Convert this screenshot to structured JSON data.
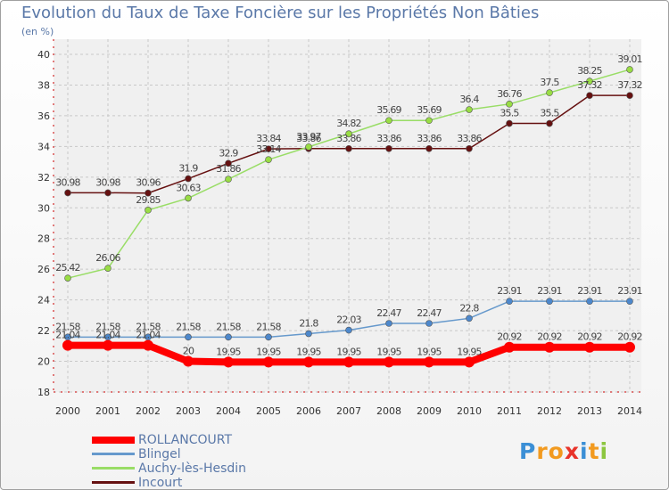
{
  "title": "Evolution du Taux de Taxe Foncière sur les Propriétés Non Bâties",
  "subtitle": "(en %)",
  "logo": "Proxiti",
  "chart_data": {
    "type": "line",
    "title": "Evolution du Taux de Taxe Foncière sur les Propriétés Non Bâties",
    "ylabel": "(en %)",
    "xlabel": "",
    "ylim": [
      18,
      40
    ],
    "yticks": [
      18,
      20,
      22,
      24,
      26,
      28,
      30,
      32,
      34,
      36,
      38,
      40
    ],
    "grid": true,
    "legend_position": "bottom-left",
    "categories": [
      "2000",
      "2001",
      "2002",
      "2003",
      "2004",
      "2005",
      "2006",
      "2007",
      "2008",
      "2009",
      "2010",
      "2011",
      "2012",
      "2013",
      "2014"
    ],
    "series": [
      {
        "name": "ROLLANCOURT",
        "color": "#ff0000",
        "values": [
          21.04,
          21.04,
          21.04,
          20,
          19.95,
          19.95,
          19.95,
          19.95,
          19.95,
          19.95,
          19.95,
          20.92,
          20.92,
          20.92,
          20.92
        ],
        "labels": [
          "21.04",
          "21.04",
          "21.04",
          "20",
          "19.95",
          "19.95",
          "19.95",
          "19.95",
          "19.95",
          "19.95",
          "19.95",
          "20.92",
          "20.92",
          "20.92",
          "20.92"
        ]
      },
      {
        "name": "Blingel",
        "color": "#6699cc",
        "values": [
          21.58,
          21.58,
          21.58,
          21.58,
          21.58,
          21.58,
          21.8,
          22.03,
          22.47,
          22.47,
          22.8,
          23.91,
          23.91,
          23.91,
          23.91
        ],
        "labels": [
          "21.58",
          "21.58",
          "21.58",
          "21.58",
          "21.58",
          "21.58",
          "21.8",
          "22.03",
          "22.47",
          "22.47",
          "22.8",
          "23.91",
          "23.91",
          "23.91",
          "23.91"
        ]
      },
      {
        "name": "Auchy-lès-Hesdin",
        "color": "#99dd66",
        "values": [
          25.42,
          26.06,
          29.85,
          30.63,
          31.86,
          33.14,
          33.97,
          34.82,
          35.69,
          35.69,
          36.4,
          36.76,
          37.5,
          38.25,
          39.01
        ],
        "labels": [
          "25.42",
          "26.06",
          "29.85",
          "30.63",
          "31.86",
          "33.14",
          "33.97",
          "34.82",
          "35.69",
          "35.69",
          "36.4",
          "36.76",
          "37.5",
          "38.25",
          "39.01"
        ]
      },
      {
        "name": "Incourt",
        "color": "#661111",
        "values": [
          30.98,
          30.98,
          30.96,
          31.9,
          32.9,
          33.84,
          33.86,
          33.86,
          33.86,
          33.86,
          33.86,
          35.5,
          35.5,
          37.32,
          37.32
        ],
        "labels": [
          "30.98",
          "30.98",
          "30.96",
          "31.9",
          "32.9",
          "33.84",
          "33.86",
          "33.86",
          "33.86",
          "33.86",
          "33.86",
          "35.5",
          "35.5",
          "37.32",
          "37.32"
        ]
      }
    ]
  },
  "legend": [
    {
      "label": "ROLLANCOURT",
      "color": "#ff0000"
    },
    {
      "label": "Blingel",
      "color": "#6699cc"
    },
    {
      "label": "Auchy-lès-Hesdin",
      "color": "#99dd66"
    },
    {
      "label": "Incourt",
      "color": "#661111"
    }
  ]
}
